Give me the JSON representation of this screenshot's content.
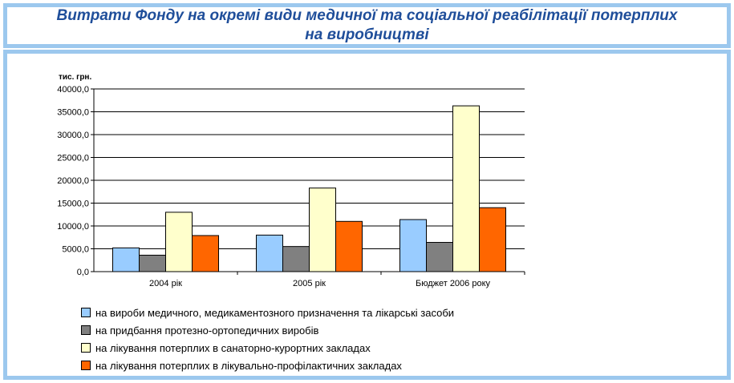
{
  "title": "Витрати Фонду на окремі види медичної та соціальної реабілітації потерплих на виробництві",
  "chart_data": {
    "type": "bar",
    "ylabel": "тис. грн.",
    "ylim": [
      0,
      40000
    ],
    "yticks": [
      "0,0",
      "5000,0",
      "10000,0",
      "15000,0",
      "20000,0",
      "25000,0",
      "30000,0",
      "35000,0",
      "40000,0"
    ],
    "categories": [
      "2004 рік",
      "2005 рік",
      "Бюджет 2006 року"
    ],
    "grid": true,
    "legend_position": "bottom",
    "series": [
      {
        "name": "на  вироби медичного, медикаментозного призначення та лікарські засоби",
        "color": "#99ccff",
        "values": [
          5200,
          8000,
          11400
        ]
      },
      {
        "name": "на придбання протезно-ортопедичних виробів",
        "color": "#808080",
        "values": [
          3600,
          5500,
          6400
        ]
      },
      {
        "name": "на лікування потерплих в санаторно-курортних закладах",
        "color": "#ffffcc",
        "values": [
          13000,
          18300,
          36300
        ]
      },
      {
        "name": "на лікування потерплих в лікувально-профілактичних закладах",
        "color": "#ff6600",
        "values": [
          7900,
          11000,
          14000
        ]
      }
    ]
  }
}
